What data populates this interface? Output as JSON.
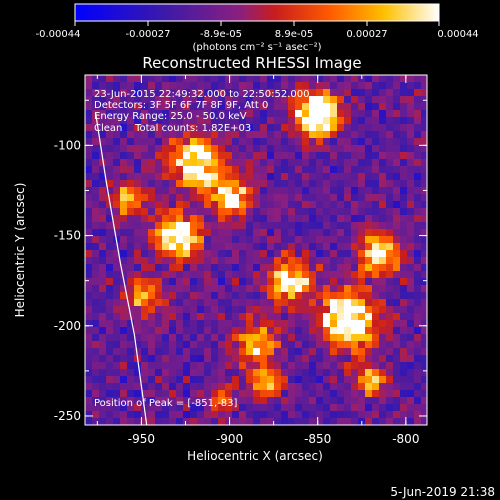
{
  "colorbar": {
    "tick_labels": [
      "-0.00044",
      "-0.00027",
      "-8.9e-05",
      "8.9e-05",
      "0.00027",
      "0.00044"
    ],
    "unit_label": "(photons cm⁻² s⁻¹ asec⁻²)",
    "range": [
      -0.00044,
      0.00044
    ]
  },
  "annotations": {
    "time_range": "23-Jun-2015 22:49:32.000 to 22:50:52.000",
    "detectors": "Detectors: 3F 5F 6F 7F 8F 9F, Att 0",
    "energy": "Energy Range: 25.0 - 50.0 keV",
    "clean": "Clean    Total counts: 1.82E+03",
    "peak": "Position of Peak = [-851,-83]"
  },
  "footer": {
    "date": "5-Jun-2019 21:38"
  },
  "chart_data": {
    "type": "heatmap",
    "title": "Reconstructed RHESSI Image",
    "xlabel": "Heliocentric X (arcsec)",
    "ylabel": "Heliocentric Y (arcsec)",
    "xlim": [
      -982,
      -788
    ],
    "ylim": [
      -255,
      -61
    ],
    "x_ticks": [
      -950,
      -900,
      -850,
      -800
    ],
    "x_tick_labels": [
      "-950",
      "-900",
      "-850",
      "-800"
    ],
    "y_ticks": [
      -100,
      -150,
      -200,
      -250
    ],
    "y_tick_labels": [
      "-100",
      "-150",
      "-200",
      "-250"
    ],
    "colormap": "hot-metal (blue-purple-red-orange-yellow-white)",
    "peak": [
      -851,
      -83
    ],
    "limb_curve": {
      "points": [
        [
          -976,
          -82
        ],
        [
          -970,
          -120
        ],
        [
          -962,
          -165
        ],
        [
          -954,
          -205
        ],
        [
          -947,
          -255
        ]
      ],
      "color": "#ffffff"
    },
    "hot_regions": [
      {
        "x": -851,
        "y": -83,
        "r": 12,
        "v": 1.0
      },
      {
        "x": -918,
        "y": -110,
        "r": 14,
        "v": 0.8
      },
      {
        "x": -930,
        "y": -150,
        "r": 13,
        "v": 0.75
      },
      {
        "x": -898,
        "y": -128,
        "r": 11,
        "v": 0.65
      },
      {
        "x": -833,
        "y": -196,
        "r": 16,
        "v": 0.85
      },
      {
        "x": -815,
        "y": -160,
        "r": 12,
        "v": 0.7
      },
      {
        "x": -866,
        "y": -175,
        "r": 12,
        "v": 0.7
      },
      {
        "x": -885,
        "y": -210,
        "r": 12,
        "v": 0.55
      },
      {
        "x": -948,
        "y": -183,
        "r": 10,
        "v": 0.5
      },
      {
        "x": -958,
        "y": -130,
        "r": 9,
        "v": 0.55
      },
      {
        "x": -880,
        "y": -232,
        "r": 9,
        "v": 0.45
      },
      {
        "x": -820,
        "y": -230,
        "r": 9,
        "v": 0.5
      },
      {
        "x": -905,
        "y": -240,
        "r": 8,
        "v": 0.4
      }
    ]
  }
}
